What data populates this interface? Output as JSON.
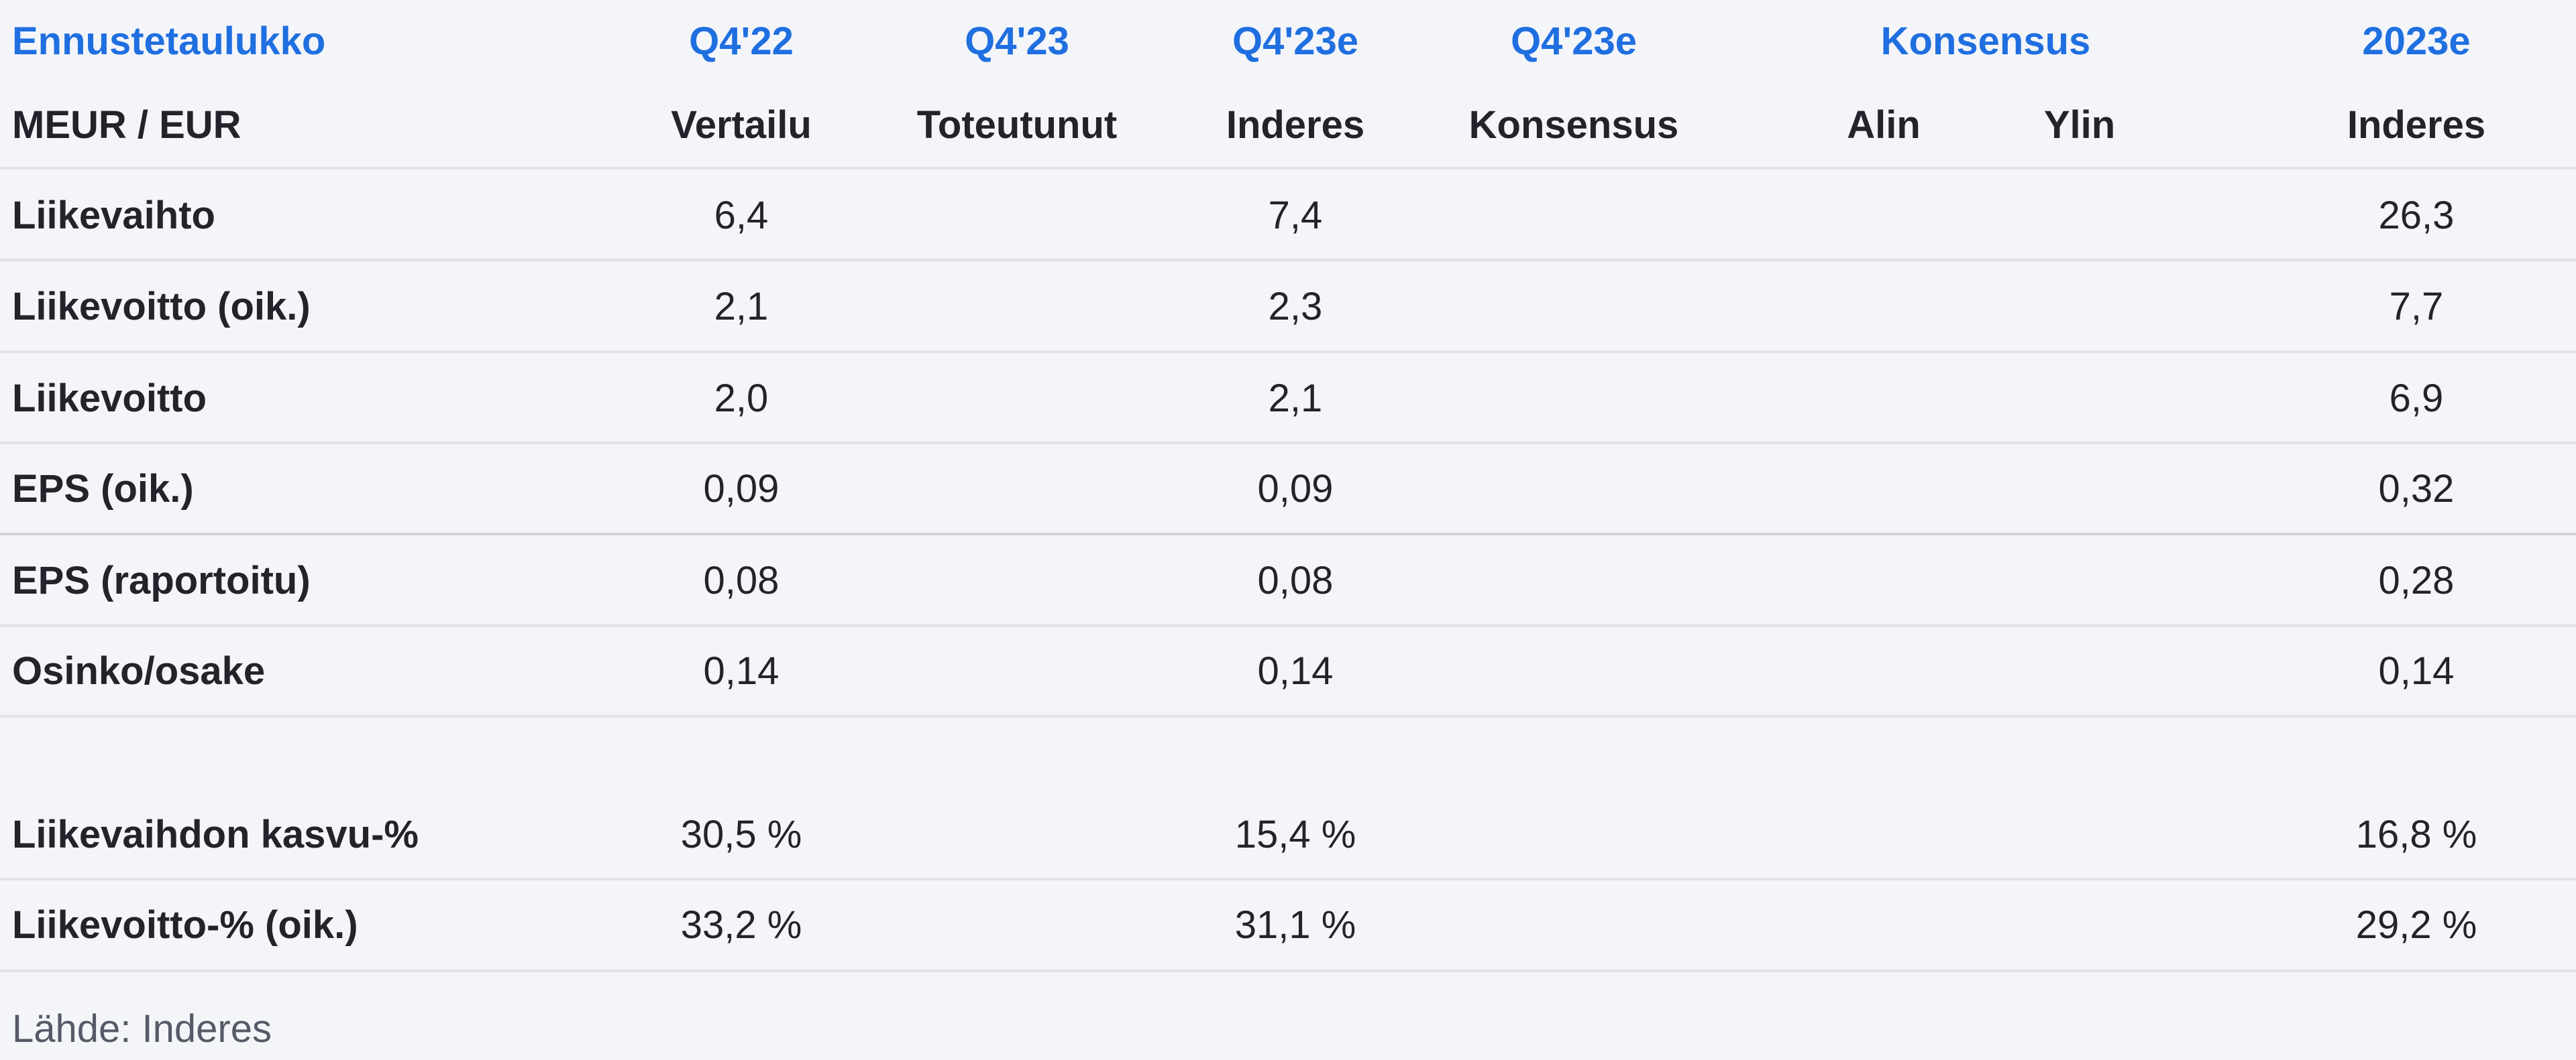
{
  "title": "Ennustetaulukko",
  "header_top": [
    "Q4'22",
    "Q4'23",
    "Q4'23e",
    "Q4'23e",
    "Konsensus",
    "2023e"
  ],
  "header_sub": {
    "unit": "MEUR / EUR",
    "cols": [
      "Vertailu",
      "Toteutunut",
      "Inderes",
      "Konsensus",
      "Alin",
      "Ylin",
      "Inderes"
    ]
  },
  "rows": [
    {
      "label": "Liikevaihto",
      "values": [
        "6,4",
        "",
        "7,4",
        "",
        "",
        "",
        "26,3"
      ]
    },
    {
      "label": "Liikevoitto (oik.)",
      "values": [
        "2,1",
        "",
        "2,3",
        "",
        "",
        "",
        "7,7"
      ]
    },
    {
      "label": "Liikevoitto",
      "values": [
        "2,0",
        "",
        "2,1",
        "",
        "",
        "",
        "6,9"
      ]
    },
    {
      "label": "EPS (oik.)",
      "values": [
        "0,09",
        "",
        "0,09",
        "",
        "",
        "",
        "0,32"
      ]
    },
    {
      "label": "EPS (raportoitu)",
      "values": [
        "0,08",
        "",
        "0,08",
        "",
        "",
        "",
        "0,28"
      ]
    },
    {
      "label": "Osinko/osake",
      "values": [
        "0,14",
        "",
        "0,14",
        "",
        "",
        "",
        "0,14"
      ]
    },
    {
      "label": "Liikevaihdon kasvu-%",
      "values": [
        "30,5 %",
        "",
        "15,4 %",
        "",
        "",
        "",
        "16,8 %"
      ]
    },
    {
      "label": "Liikevoitto-% (oik.)",
      "values": [
        "33,2 %",
        "",
        "31,1 %",
        "",
        "",
        "",
        "29,2 %"
      ]
    }
  ],
  "source": "Lähde: Inderes",
  "colors": {
    "accent": "#1f6fe0",
    "background": "#f4f5f9"
  }
}
